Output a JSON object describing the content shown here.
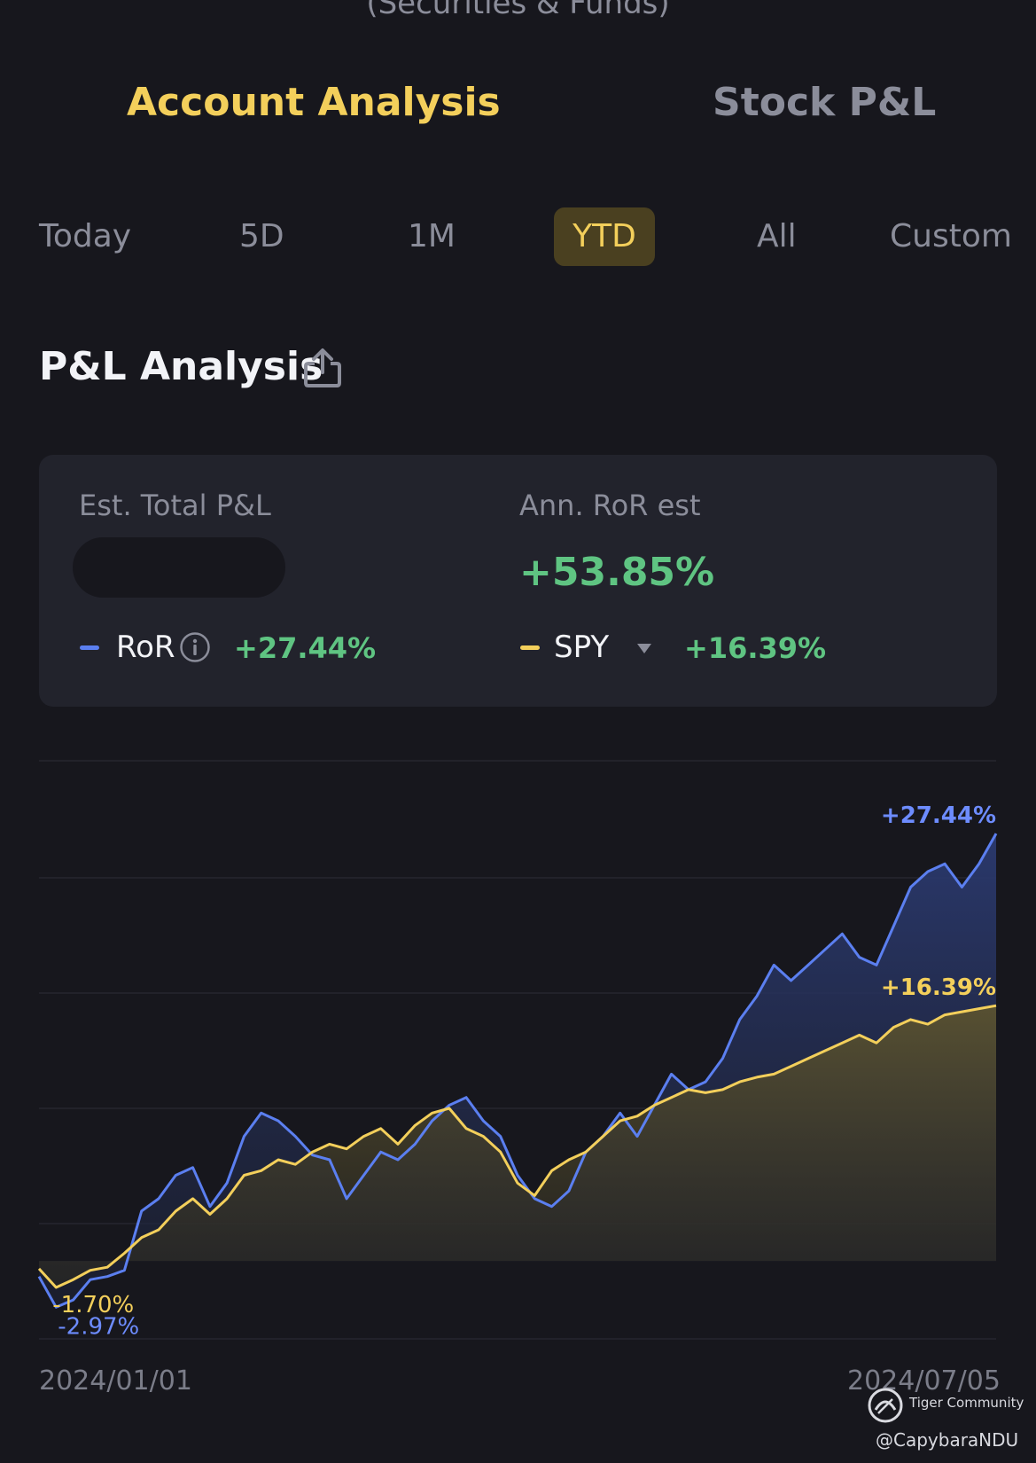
{
  "header": {
    "subtitle": "(Securities & Funds)"
  },
  "main_tabs": [
    {
      "label": "Account Analysis",
      "active": true
    },
    {
      "label": "Stock P&L",
      "active": false
    }
  ],
  "periods": [
    {
      "label": "Today",
      "active": false
    },
    {
      "label": "5D",
      "active": false
    },
    {
      "label": "1M",
      "active": false
    },
    {
      "label": "YTD",
      "active": true
    },
    {
      "label": "All",
      "active": false
    },
    {
      "label": "Custom",
      "active": false
    }
  ],
  "section": {
    "title": "P&L Analysis",
    "share_icon": "share-icon"
  },
  "summary": {
    "total_pl_label": "Est. Total P&L",
    "total_pl_value_hidden": true,
    "ann_ror_label": "Ann. RoR est",
    "ann_ror_value": "+53.85%",
    "ror_legend": {
      "name": "RoR",
      "value": "+27.44%",
      "icon": "info-icon"
    },
    "spy_legend": {
      "name": "SPY",
      "value": "+16.39%",
      "icon": "dropdown-triangle-icon"
    }
  },
  "colors": {
    "background": "#17171d",
    "card": "#22232c",
    "accent_yellow": "#f3cf5b",
    "ror_blue": "#5b7ff0",
    "positive_green": "#5fc482",
    "muted_text": "#8b8d9a"
  },
  "chart_data": {
    "type": "line",
    "x_start_label": "2024/01/01",
    "x_end_label": "2024/07/05",
    "grid": true,
    "series": [
      {
        "name": "RoR",
        "end_label": "+27.44%",
        "min_label": "-2.97%",
        "values": [
          -1.0,
          -2.97,
          -2.5,
          -1.2,
          -1.0,
          -0.6,
          3.2,
          4.0,
          5.5,
          6.0,
          3.5,
          5.0,
          8.0,
          9.5,
          9.0,
          8.0,
          6.8,
          6.5,
          4.0,
          5.5,
          7.0,
          6.5,
          7.5,
          9.0,
          10.0,
          10.5,
          9.0,
          8.0,
          5.5,
          4.0,
          3.5,
          4.5,
          7.0,
          8.0,
          9.5,
          8.0,
          10.0,
          12.0,
          11.0,
          11.5,
          13.0,
          15.5,
          17.0,
          19.0,
          18.0,
          19.0,
          20.0,
          21.0,
          19.5,
          19.0,
          21.5,
          24.0,
          25.0,
          25.5,
          24.0,
          25.5,
          27.44
        ]
      },
      {
        "name": "SPY",
        "end_label": "+16.39%",
        "min_label": "-1.70%",
        "values": [
          -0.5,
          -1.7,
          -1.2,
          -0.6,
          -0.4,
          0.5,
          1.5,
          2.0,
          3.2,
          4.0,
          3.0,
          4.0,
          5.5,
          5.8,
          6.5,
          6.2,
          7.0,
          7.5,
          7.2,
          8.0,
          8.5,
          7.5,
          8.7,
          9.5,
          9.8,
          8.5,
          8.0,
          7.0,
          5.0,
          4.2,
          5.8,
          6.5,
          7.0,
          8.0,
          9.0,
          9.3,
          10.0,
          10.5,
          11.0,
          10.8,
          11.0,
          11.5,
          11.8,
          12.0,
          12.5,
          13.0,
          13.5,
          14.0,
          14.5,
          14.0,
          15.0,
          15.5,
          15.2,
          15.8,
          16.0,
          16.2,
          16.39
        ]
      }
    ],
    "ylim": [
      -5,
      32
    ]
  },
  "watermark": {
    "brand": "Tiger Community",
    "handle": "@CapybaraNDU"
  }
}
